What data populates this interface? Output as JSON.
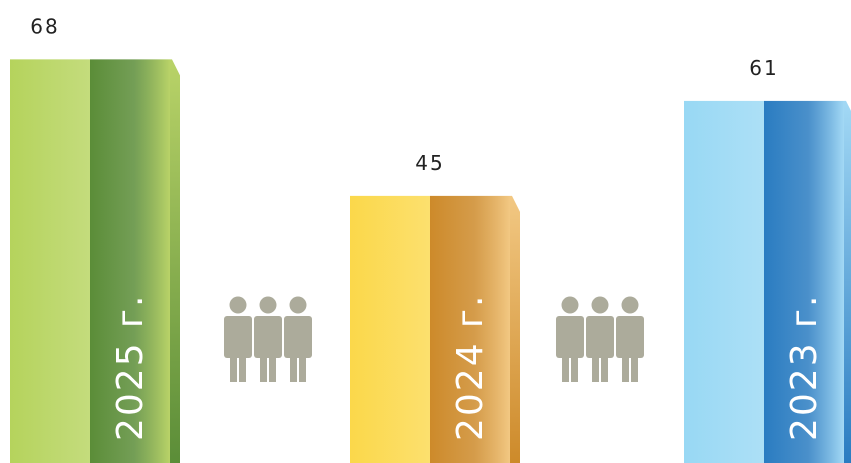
{
  "chart_data": {
    "type": "bar",
    "categories": [
      "2025 г.",
      "2024 г.",
      "2023 г."
    ],
    "values": [
      68,
      45,
      61
    ],
    "title": "",
    "xlabel": "",
    "ylabel": "",
    "ylim": [
      0,
      78
    ],
    "grid": false,
    "legend": "none",
    "colors": {
      "2025 г.": {
        "light": "#b5d35c",
        "mid": "#5b8d38",
        "end": "#b9d368"
      },
      "2024 г.": {
        "light": "#fbd84a",
        "mid": "#cd8a2a",
        "end": "#f2c883"
      },
      "2023 г.": {
        "light": "#98d8f4",
        "mid": "#2a7cc1",
        "end": "#a3d9f5"
      },
      "people": "#acab9b"
    }
  },
  "people_icon": "people-group-icon"
}
